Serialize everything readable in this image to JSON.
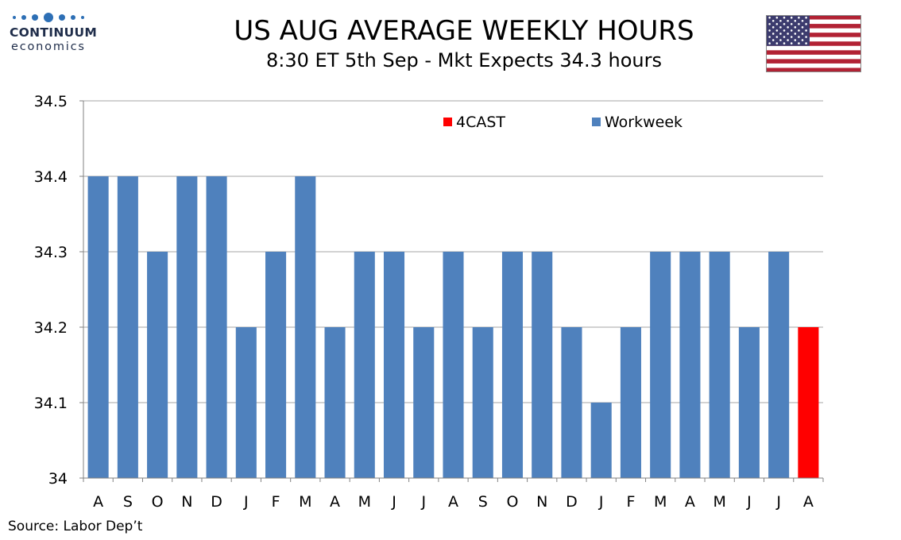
{
  "brand": {
    "name": "CONTINUUM",
    "sub": "economics"
  },
  "colors": {
    "workweek": "#4f81bd",
    "forecast": "#ff0000",
    "grid": "#a6a6a6",
    "axis": "#808080"
  },
  "chart_data": {
    "type": "bar",
    "title": "US AUG AVERAGE WEEKLY HOURS",
    "subtitle": "8:30 ET 5th Sep - Mkt Expects 34.3 hours",
    "categories": [
      "A",
      "S",
      "O",
      "N",
      "D",
      "J",
      "F",
      "M",
      "A",
      "M",
      "J",
      "J",
      "A",
      "S",
      "O",
      "N",
      "D",
      "J",
      "F",
      "M",
      "A",
      "M",
      "J",
      "J",
      "A"
    ],
    "series": [
      {
        "name": "Workweek",
        "color": "#4f81bd",
        "values": [
          34.4,
          34.4,
          34.3,
          34.4,
          34.4,
          34.2,
          34.3,
          34.4,
          34.2,
          34.3,
          34.3,
          34.2,
          34.3,
          34.2,
          34.3,
          34.3,
          34.2,
          34.1,
          34.2,
          34.3,
          34.3,
          34.3,
          34.2,
          34.3,
          null
        ]
      },
      {
        "name": "4CAST",
        "color": "#ff0000",
        "values": [
          null,
          null,
          null,
          null,
          null,
          null,
          null,
          null,
          null,
          null,
          null,
          null,
          null,
          null,
          null,
          null,
          null,
          null,
          null,
          null,
          null,
          null,
          null,
          null,
          34.2
        ]
      }
    ],
    "legend_order": [
      "4CAST",
      "Workweek"
    ],
    "legend_position": "top",
    "ylim": [
      34,
      34.5
    ],
    "yticks": [
      "34",
      "34.1",
      "34.2",
      "34.3",
      "34.4",
      "34.5"
    ],
    "ytick_values": [
      34,
      34.1,
      34.2,
      34.3,
      34.4,
      34.5
    ],
    "grid": true,
    "xlabel": "",
    "ylabel": "",
    "source": "Source: Labor Dep’t"
  }
}
